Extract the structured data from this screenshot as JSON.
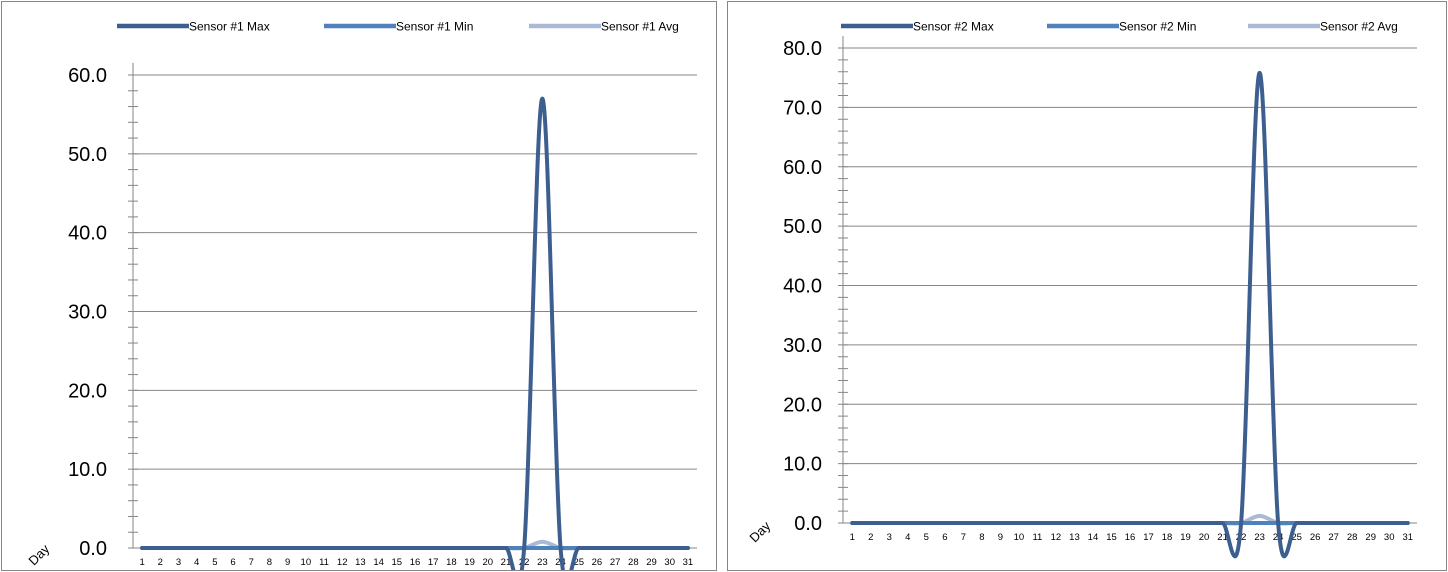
{
  "chart_data": [
    {
      "type": "line",
      "xlabel": "Day",
      "ylabel": "",
      "categories": [
        "1",
        "2",
        "3",
        "4",
        "5",
        "6",
        "7",
        "8",
        "9",
        "10",
        "11",
        "12",
        "13",
        "14",
        "15",
        "16",
        "17",
        "18",
        "19",
        "20",
        "21",
        "22",
        "23",
        "24",
        "25",
        "26",
        "27",
        "28",
        "29",
        "30",
        "31"
      ],
      "ylim": [
        0,
        60
      ],
      "ytick_labels": [
        "0.0",
        "10.0",
        "20.0",
        "30.0",
        "40.0",
        "50.0",
        "60.0"
      ],
      "grid": true,
      "legend_position": "top",
      "smooth": true,
      "series": [
        {
          "name": "Sensor #1 Max",
          "color": "#3D5F8F",
          "values": [
            0,
            0,
            0,
            0,
            0,
            0,
            0,
            0,
            0,
            0,
            0,
            0,
            0,
            0,
            0,
            0,
            0,
            0,
            0,
            0,
            0,
            0,
            57,
            0,
            0,
            0,
            0,
            0,
            0,
            0,
            0
          ]
        },
        {
          "name": "Sensor #1 Min",
          "color": "#4F81BD",
          "values": [
            0,
            0,
            0,
            0,
            0,
            0,
            0,
            0,
            0,
            0,
            0,
            0,
            0,
            0,
            0,
            0,
            0,
            0,
            0,
            0,
            0,
            0,
            0,
            0,
            0,
            0,
            0,
            0,
            0,
            0,
            0
          ]
        },
        {
          "name": "Sensor #1 Avg",
          "color": "#A9B9D6",
          "values": [
            0,
            0,
            0,
            0,
            0,
            0,
            0,
            0,
            0,
            0,
            0,
            0,
            0,
            0,
            0,
            0,
            0,
            0,
            0,
            0,
            0,
            0,
            0.8,
            0,
            0,
            0,
            0,
            0,
            0,
            0,
            0
          ]
        }
      ]
    },
    {
      "type": "line",
      "xlabel": "Day",
      "ylabel": "",
      "categories": [
        "1",
        "2",
        "3",
        "4",
        "5",
        "6",
        "7",
        "8",
        "9",
        "10",
        "11",
        "12",
        "13",
        "14",
        "15",
        "16",
        "17",
        "18",
        "19",
        "20",
        "21",
        "22",
        "23",
        "24",
        "25",
        "26",
        "27",
        "28",
        "29",
        "30",
        "31"
      ],
      "ylim": [
        0,
        80
      ],
      "ytick_labels": [
        "0.0",
        "10.0",
        "20.0",
        "30.0",
        "40.0",
        "50.0",
        "60.0",
        "70.0",
        "80.0"
      ],
      "grid": true,
      "legend_position": "top",
      "smooth": true,
      "series": [
        {
          "name": "Sensor #2 Max",
          "color": "#3D5F8F",
          "values": [
            0,
            0,
            0,
            0,
            0,
            0,
            0,
            0,
            0,
            0,
            0,
            0,
            0,
            0,
            0,
            0,
            0,
            0,
            0,
            0,
            0,
            0,
            75.8,
            0,
            0,
            0,
            0,
            0,
            0,
            0,
            0
          ]
        },
        {
          "name": "Sensor #2 Min",
          "color": "#4F81BD",
          "values": [
            0,
            0,
            0,
            0,
            0,
            0,
            0,
            0,
            0,
            0,
            0,
            0,
            0,
            0,
            0,
            0,
            0,
            0,
            0,
            0,
            0,
            0,
            0,
            0,
            0,
            0,
            0,
            0,
            0,
            0,
            0
          ]
        },
        {
          "name": "Sensor #2 Avg",
          "color": "#A9B9D6",
          "values": [
            0,
            0,
            0,
            0,
            0,
            0,
            0,
            0,
            0,
            0,
            0,
            0,
            0,
            0,
            0,
            0,
            0,
            0,
            0,
            0,
            0,
            0,
            1.2,
            0,
            0,
            0,
            0,
            0,
            0,
            0,
            0
          ]
        }
      ]
    }
  ]
}
